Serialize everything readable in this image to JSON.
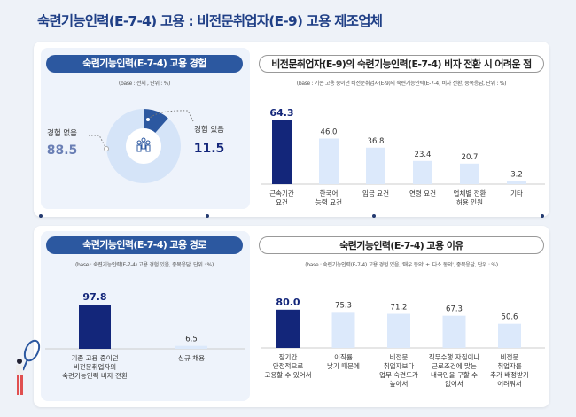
{
  "title": "숙련기능인력(E-7-4) 고용 : 비전문취업자(E-9) 고용 제조업체",
  "colors": {
    "highlight": "#13267a",
    "bar": "#dce9fb",
    "donut_main": "#2c58a0",
    "donut_rest": "#d5e4f8",
    "pill": "#2c58a0"
  },
  "experience": {
    "heading": "숙련기능인력(E-7-4) 고용 경험",
    "base": "(base : 전체 , 단위 : %)",
    "icon": "people-group-icon",
    "chart_data": {
      "type": "pie",
      "series": [
        {
          "name": "경험 있음",
          "value": 11.5
        },
        {
          "name": "경험 없음",
          "value": 88.5
        }
      ]
    },
    "yes_label": "경험 있음",
    "yes_value": "11.5",
    "no_label": "경험 없음",
    "no_value": "88.5"
  },
  "difficulty": {
    "heading": "비전문취업자(E-9)의 숙련기능인력(E-7-4) 비자 전환 시 어려운 점",
    "base": "(base : 기존 고용 중이던 비전문취업자(E-9)의 숙련기능인력(E-7-4) 비자 전환, 중복응답, 단위 : %)",
    "chart_data": {
      "type": "bar",
      "categories": [
        "근속기간\n요건",
        "한국어\n능력 요건",
        "임금 요건",
        "연령 요건",
        "업체별 전환\n허용 인원",
        "기타"
      ],
      "values": [
        64.3,
        46.0,
        36.8,
        23.4,
        20.7,
        3.2
      ],
      "labels": [
        "64.3",
        "46.0",
        "36.8",
        "23.4",
        "20.7",
        "3.2"
      ],
      "highlight": 0
    }
  },
  "route": {
    "heading": "숙련기능인력(E-7-4) 고용 경로",
    "base": "(base : 숙련기능인력(E-7-4) 고용 경험 있음, 중복응답, 단위 : %)",
    "chart_data": {
      "type": "bar",
      "categories": [
        "기존 고용 중이던\n비전문취업자의\n숙련기능인력 비자 전환",
        "신규 채용"
      ],
      "values": [
        97.8,
        6.5
      ],
      "labels": [
        "97.8",
        "6.5"
      ],
      "highlight": 0
    }
  },
  "reason": {
    "heading": "숙련기능인력(E-7-4) 고용 이유",
    "base": "(base : 숙련기능인력(E-7-4) 고용 경험 있음, '매우 동의' + '다소 동의', 중복응답, 단위 : %)",
    "chart_data": {
      "type": "bar",
      "categories": [
        "장기간\n안정적으로\n고용할 수 있어서",
        "이직률\n낮기 때문에",
        "비전문\n취업자보다\n업무 숙련도가\n높아서",
        "직무수행 자질이나\n근로조건에 맞는\n내국인을 구할 수\n없어서",
        "비전문\n취업자를\n추가 배정받기\n어려워서"
      ],
      "values": [
        80.0,
        75.3,
        71.2,
        67.3,
        50.6
      ],
      "labels": [
        "80.0",
        "75.3",
        "71.2",
        "67.3",
        "50.6"
      ],
      "highlight": 0
    }
  }
}
